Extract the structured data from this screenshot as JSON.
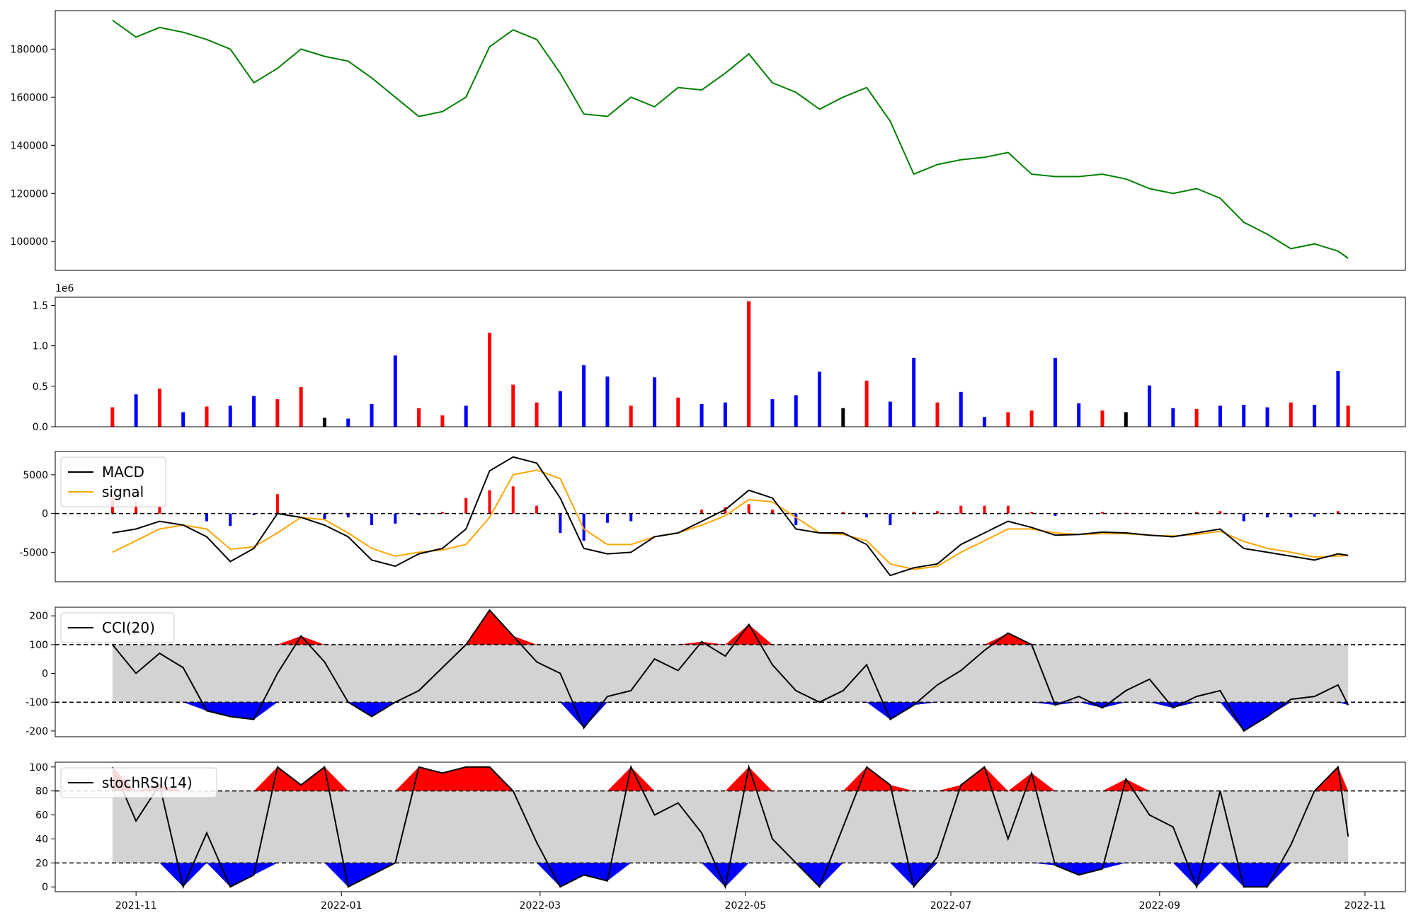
{
  "chart_data": [
    {
      "panel": "price",
      "type": "line",
      "color": "#008000",
      "ylim": [
        88000,
        196000
      ],
      "yticks": [
        "100000",
        "120000",
        "140000",
        "160000",
        "180000"
      ],
      "ytick_values": [
        100000,
        120000,
        140000,
        160000,
        180000
      ],
      "x": [
        "2021-10-25",
        "2021-11-01",
        "2021-11-08",
        "2021-11-15",
        "2021-11-22",
        "2021-11-29",
        "2021-12-06",
        "2021-12-13",
        "2021-12-20",
        "2021-12-27",
        "2022-01-03",
        "2022-01-10",
        "2022-01-17",
        "2022-01-24",
        "2022-01-31",
        "2022-02-07",
        "2022-02-14",
        "2022-02-21",
        "2022-02-28",
        "2022-03-07",
        "2022-03-14",
        "2022-03-21",
        "2022-03-28",
        "2022-04-04",
        "2022-04-11",
        "2022-04-18",
        "2022-04-25",
        "2022-05-02",
        "2022-05-09",
        "2022-05-16",
        "2022-05-23",
        "2022-05-30",
        "2022-06-06",
        "2022-06-13",
        "2022-06-20",
        "2022-06-27",
        "2022-07-04",
        "2022-07-11",
        "2022-07-18",
        "2022-07-25",
        "2022-08-01",
        "2022-08-08",
        "2022-08-15",
        "2022-08-22",
        "2022-08-29",
        "2022-09-05",
        "2022-09-12",
        "2022-09-19",
        "2022-09-26",
        "2022-10-03",
        "2022-10-10",
        "2022-10-17",
        "2022-10-24",
        "2022-10-27"
      ],
      "values": [
        192000,
        185000,
        189000,
        187000,
        184000,
        180000,
        166000,
        172000,
        180000,
        177000,
        175000,
        168000,
        160000,
        152000,
        154000,
        160000,
        181000,
        188000,
        184000,
        170000,
        153000,
        152000,
        160000,
        156000,
        164000,
        163000,
        170000,
        178000,
        166000,
        162000,
        155000,
        160000,
        164000,
        150000,
        128000,
        132000,
        134000,
        135000,
        137000,
        128000,
        127000,
        127000,
        128000,
        126000,
        122000,
        120000,
        122000,
        118000,
        108000,
        103000,
        97000,
        99000,
        96000,
        93000
      ]
    },
    {
      "panel": "volume",
      "type": "bar",
      "multiplier_label": "1e6",
      "ylim": [
        0,
        1600000
      ],
      "yticks": [
        "0.0",
        "0.5",
        "1.0",
        "1.5"
      ],
      "ytick_values": [
        0,
        500000,
        1000000,
        1500000
      ],
      "up_color": "#ff0000",
      "down_color": "#0000ff",
      "flat_color": "#000000",
      "x": [
        "2021-10-25",
        "2021-11-01",
        "2021-11-08",
        "2021-11-15",
        "2021-11-22",
        "2021-11-29",
        "2021-12-06",
        "2021-12-13",
        "2021-12-20",
        "2021-12-27",
        "2022-01-03",
        "2022-01-10",
        "2022-01-17",
        "2022-01-24",
        "2022-01-31",
        "2022-02-07",
        "2022-02-14",
        "2022-02-21",
        "2022-02-28",
        "2022-03-07",
        "2022-03-14",
        "2022-03-21",
        "2022-03-28",
        "2022-04-04",
        "2022-04-11",
        "2022-04-18",
        "2022-04-25",
        "2022-05-02",
        "2022-05-09",
        "2022-05-16",
        "2022-05-23",
        "2022-05-30",
        "2022-06-06",
        "2022-06-13",
        "2022-06-20",
        "2022-06-27",
        "2022-07-04",
        "2022-07-11",
        "2022-07-18",
        "2022-07-25",
        "2022-08-01",
        "2022-08-08",
        "2022-08-15",
        "2022-08-22",
        "2022-08-29",
        "2022-09-05",
        "2022-09-12",
        "2022-09-19",
        "2022-09-26",
        "2022-10-03",
        "2022-10-10",
        "2022-10-17",
        "2022-10-24",
        "2022-10-27"
      ],
      "values": [
        240000,
        400000,
        470000,
        180000,
        250000,
        260000,
        380000,
        340000,
        490000,
        110000,
        100000,
        280000,
        880000,
        230000,
        140000,
        260000,
        1160000,
        520000,
        300000,
        440000,
        760000,
        620000,
        260000,
        610000,
        360000,
        280000,
        300000,
        1550000,
        340000,
        390000,
        680000,
        230000,
        570000,
        310000,
        850000,
        300000,
        430000,
        120000,
        180000,
        200000,
        850000,
        290000,
        200000,
        180000,
        510000,
        230000,
        220000,
        260000,
        270000,
        240000,
        300000,
        270000,
        690000,
        260000
      ],
      "direction": [
        "up",
        "down",
        "up",
        "down",
        "up",
        "down",
        "down",
        "up",
        "up",
        "flat",
        "down",
        "down",
        "down",
        "up",
        "up",
        "down",
        "up",
        "up",
        "up",
        "down",
        "down",
        "down",
        "up",
        "down",
        "up",
        "down",
        "down",
        "up",
        "down",
        "down",
        "down",
        "flat",
        "up",
        "down",
        "down",
        "up",
        "down",
        "down",
        "up",
        "up",
        "down",
        "down",
        "up",
        "flat",
        "down",
        "down",
        "up",
        "down",
        "down",
        "down",
        "up",
        "down",
        "down",
        "up"
      ]
    },
    {
      "panel": "macd",
      "type": "line",
      "ylim": [
        -8800,
        8000
      ],
      "yticks": [
        "-5000",
        "0",
        "5000"
      ],
      "ytick_values": [
        -5000,
        0,
        5000
      ],
      "legend": [
        {
          "name": "MACD",
          "color": "#000000"
        },
        {
          "name": "signal",
          "color": "#ffa500"
        }
      ],
      "hist_up_color": "#ff0000",
      "hist_down_color": "#0000ff",
      "x": [
        "2021-10-25",
        "2021-11-01",
        "2021-11-08",
        "2021-11-15",
        "2021-11-22",
        "2021-11-29",
        "2021-12-06",
        "2021-12-13",
        "2021-12-20",
        "2021-12-27",
        "2022-01-03",
        "2022-01-10",
        "2022-01-17",
        "2022-01-24",
        "2022-01-31",
        "2022-02-07",
        "2022-02-14",
        "2022-02-21",
        "2022-02-28",
        "2022-03-07",
        "2022-03-14",
        "2022-03-21",
        "2022-03-28",
        "2022-04-04",
        "2022-04-11",
        "2022-04-18",
        "2022-04-25",
        "2022-05-02",
        "2022-05-09",
        "2022-05-16",
        "2022-05-23",
        "2022-05-30",
        "2022-06-06",
        "2022-06-13",
        "2022-06-20",
        "2022-06-27",
        "2022-07-04",
        "2022-07-11",
        "2022-07-18",
        "2022-07-25",
        "2022-08-01",
        "2022-08-08",
        "2022-08-15",
        "2022-08-22",
        "2022-08-29",
        "2022-09-05",
        "2022-09-12",
        "2022-09-19",
        "2022-09-26",
        "2022-10-03",
        "2022-10-10",
        "2022-10-17",
        "2022-10-24",
        "2022-10-27"
      ],
      "series": [
        {
          "name": "MACD",
          "values": [
            -2500,
            -2000,
            -1000,
            -1500,
            -3000,
            -6200,
            -4500,
            0,
            -500,
            -1500,
            -3000,
            -6000,
            -6800,
            -5200,
            -4500,
            -2000,
            5500,
            7300,
            6500,
            2000,
            -4500,
            -5200,
            -5000,
            -3000,
            -2500,
            -1000,
            500,
            3000,
            2000,
            -2000,
            -2500,
            -2500,
            -4000,
            -8000,
            -7000,
            -6500,
            -4000,
            -2500,
            -1000,
            -1800,
            -2800,
            -2700,
            -2400,
            -2500,
            -2800,
            -3000,
            -2500,
            -2000,
            -4500,
            -5000,
            -5500,
            -6000,
            -5200,
            -5400
          ]
        },
        {
          "name": "signal",
          "values": [
            -5000,
            -3500,
            -2000,
            -1500,
            -2000,
            -4600,
            -4300,
            -2500,
            -500,
            -800,
            -2500,
            -4500,
            -5500,
            -5000,
            -4700,
            -4000,
            -500,
            5000,
            5600,
            4500,
            -2000,
            -4000,
            -4000,
            -3000,
            -2500,
            -1500,
            -300,
            1800,
            1500,
            -500,
            -2500,
            -2700,
            -3500,
            -6500,
            -7200,
            -6800,
            -5000,
            -3500,
            -2000,
            -2000,
            -2500,
            -2700,
            -2600,
            -2600,
            -2800,
            -2900,
            -2700,
            -2300,
            -3600,
            -4500,
            -5000,
            -5600,
            -5500,
            -5400
          ]
        },
        {
          "name": "histogram",
          "values": [
            2500,
            1500,
            1000,
            0,
            -1000,
            -1600,
            -200,
            2500,
            0,
            -700,
            -500,
            -1500,
            -1300,
            -200,
            200,
            2000,
            3000,
            3500,
            1000,
            -2500,
            -3500,
            -1200,
            -1000,
            0,
            0,
            500,
            800,
            1200,
            500,
            -1500,
            0,
            200,
            -500,
            -1500,
            200,
            300,
            1000,
            1000,
            1000,
            200,
            -300,
            0,
            200,
            100,
            0,
            0,
            200,
            300,
            -1000,
            -500,
            -500,
            -400,
            300,
            0
          ]
        }
      ]
    },
    {
      "panel": "cci",
      "type": "line",
      "ylim": [
        -220,
        230
      ],
      "yticks": [
        "-200",
        "-100",
        "0",
        "100",
        "200"
      ],
      "ytick_values": [
        -200,
        -100,
        0,
        100,
        200
      ],
      "reference_lines": [
        100,
        -100
      ],
      "band_color": "#d3d3d3",
      "overbought_color": "#ff0000",
      "oversold_color": "#0000ff",
      "legend": [
        {
          "name": "CCI(20)",
          "color": "#000000"
        }
      ],
      "x": [
        "2021-10-25",
        "2021-11-01",
        "2021-11-08",
        "2021-11-15",
        "2021-11-22",
        "2021-11-29",
        "2021-12-06",
        "2021-12-13",
        "2021-12-20",
        "2021-12-27",
        "2022-01-03",
        "2022-01-10",
        "2022-01-17",
        "2022-01-24",
        "2022-01-31",
        "2022-02-07",
        "2022-02-14",
        "2022-02-21",
        "2022-02-28",
        "2022-03-07",
        "2022-03-14",
        "2022-03-21",
        "2022-03-28",
        "2022-04-04",
        "2022-04-11",
        "2022-04-18",
        "2022-04-25",
        "2022-05-02",
        "2022-05-09",
        "2022-05-16",
        "2022-05-23",
        "2022-05-30",
        "2022-06-06",
        "2022-06-13",
        "2022-06-20",
        "2022-06-27",
        "2022-07-04",
        "2022-07-11",
        "2022-07-18",
        "2022-07-25",
        "2022-08-01",
        "2022-08-08",
        "2022-08-15",
        "2022-08-22",
        "2022-08-29",
        "2022-09-05",
        "2022-09-12",
        "2022-09-19",
        "2022-09-26",
        "2022-10-03",
        "2022-10-10",
        "2022-10-17",
        "2022-10-24",
        "2022-10-27"
      ],
      "values": [
        100,
        0,
        70,
        20,
        -130,
        -150,
        -160,
        0,
        130,
        40,
        -100,
        -150,
        -100,
        -60,
        20,
        100,
        220,
        130,
        40,
        0,
        -190,
        -80,
        -60,
        50,
        10,
        110,
        60,
        170,
        30,
        -60,
        -100,
        -60,
        30,
        -160,
        -110,
        -40,
        10,
        80,
        140,
        100,
        -110,
        -80,
        -120,
        -60,
        -20,
        -120,
        -80,
        -60,
        -200,
        -150,
        -90,
        -80,
        -40,
        -110
      ]
    },
    {
      "panel": "stochrsi",
      "type": "line",
      "ylim": [
        -4,
        104
      ],
      "yticks": [
        "0",
        "20",
        "40",
        "60",
        "80",
        "100"
      ],
      "ytick_values": [
        0,
        20,
        40,
        60,
        80,
        100
      ],
      "reference_lines": [
        80,
        20
      ],
      "band_color": "#d3d3d3",
      "overbought_color": "#ff0000",
      "oversold_color": "#0000ff",
      "legend": [
        {
          "name": "stochRSI(14)",
          "color": "#000000"
        }
      ],
      "x": [
        "2021-10-25",
        "2021-11-01",
        "2021-11-08",
        "2021-11-15",
        "2021-11-22",
        "2021-11-29",
        "2021-12-06",
        "2021-12-13",
        "2021-12-20",
        "2021-12-27",
        "2022-01-03",
        "2022-01-10",
        "2022-01-17",
        "2022-01-24",
        "2022-01-31",
        "2022-02-07",
        "2022-02-14",
        "2022-02-21",
        "2022-02-28",
        "2022-03-07",
        "2022-03-14",
        "2022-03-21",
        "2022-03-28",
        "2022-04-04",
        "2022-04-11",
        "2022-04-18",
        "2022-04-25",
        "2022-05-02",
        "2022-05-09",
        "2022-05-16",
        "2022-05-23",
        "2022-05-30",
        "2022-06-06",
        "2022-06-13",
        "2022-06-20",
        "2022-06-27",
        "2022-07-04",
        "2022-07-11",
        "2022-07-18",
        "2022-07-25",
        "2022-08-01",
        "2022-08-08",
        "2022-08-15",
        "2022-08-22",
        "2022-08-29",
        "2022-09-05",
        "2022-09-12",
        "2022-09-19",
        "2022-09-26",
        "2022-10-03",
        "2022-10-10",
        "2022-10-17",
        "2022-10-24",
        "2022-10-27"
      ],
      "values": [
        100,
        55,
        85,
        0,
        45,
        0,
        10,
        100,
        85,
        100,
        0,
        10,
        20,
        100,
        95,
        100,
        100,
        80,
        37,
        0,
        10,
        5,
        100,
        60,
        70,
        45,
        0,
        100,
        40,
        20,
        0,
        50,
        100,
        85,
        0,
        25,
        85,
        100,
        40,
        95,
        18,
        10,
        15,
        90,
        60,
        50,
        0,
        80,
        0,
        0,
        35,
        80,
        100,
        42
      ]
    }
  ],
  "x_axis": {
    "tick_labels": [
      "2021-11",
      "2022-01",
      "2022-03",
      "2022-05",
      "2022-07",
      "2022-09",
      "2022-11"
    ],
    "tick_dates": [
      "2021-11-01",
      "2022-01-01",
      "2022-03-01",
      "2022-05-01",
      "2022-07-01",
      "2022-09-01",
      "2022-11-01"
    ],
    "range": [
      "2021-10-08",
      "2022-11-13"
    ]
  }
}
